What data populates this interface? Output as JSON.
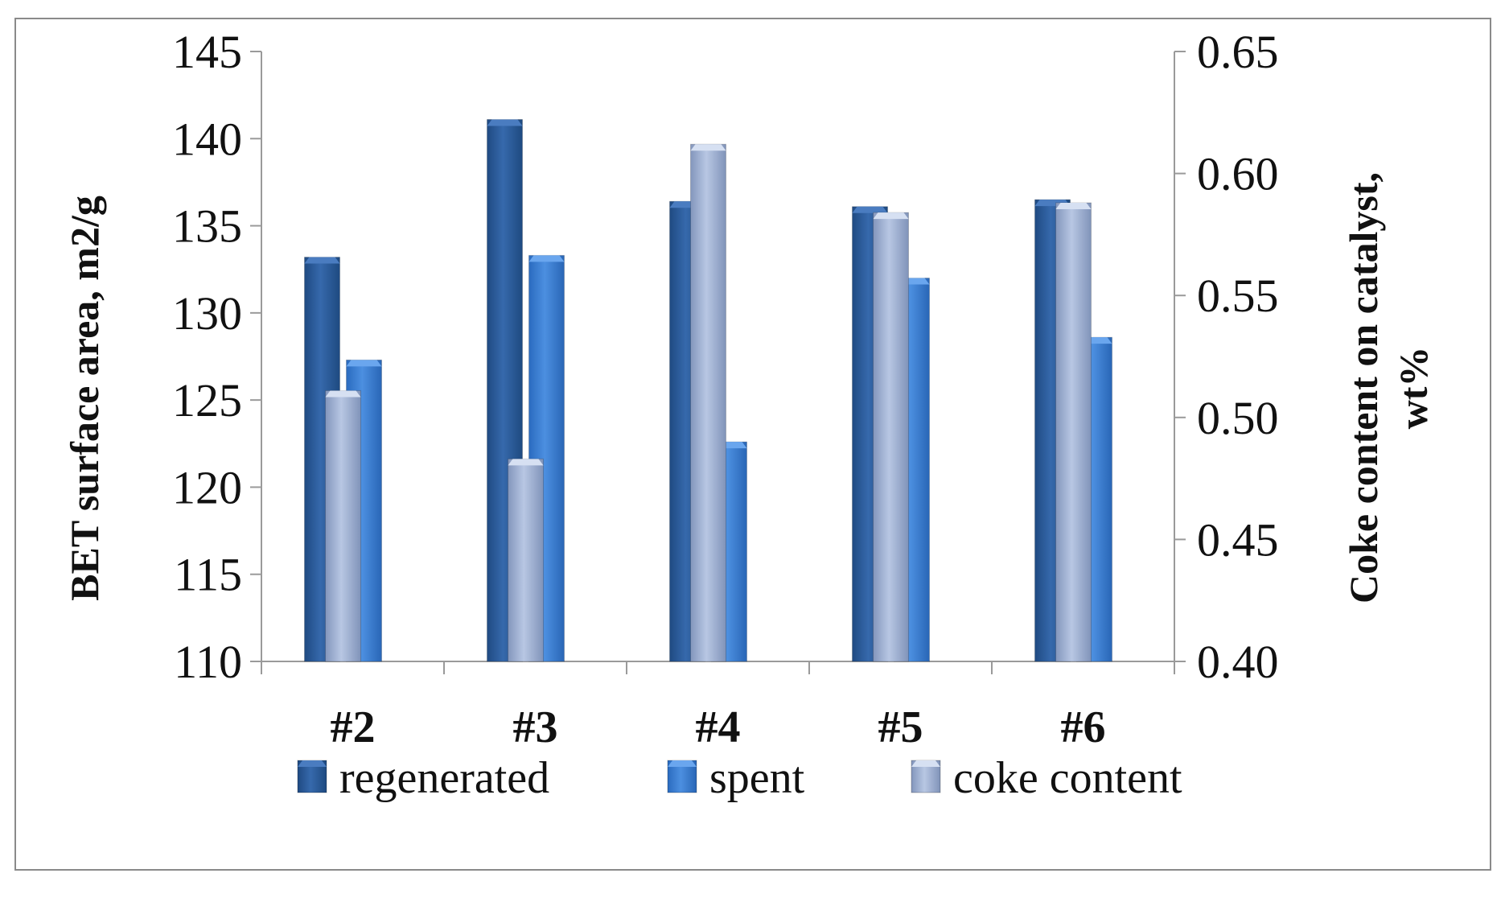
{
  "chart_data": {
    "type": "bar",
    "categories": [
      "#2",
      "#3",
      "#4",
      "#5",
      "#6"
    ],
    "series": [
      {
        "name": "regenerated",
        "axis": "left",
        "values": [
          133.2,
          141.1,
          136.4,
          136.1,
          136.5
        ],
        "color": "#2e5f9e"
      },
      {
        "name": "spent",
        "axis": "left",
        "values": [
          127.3,
          133.3,
          122.6,
          132.0,
          128.6
        ],
        "color": "#3d7fd0"
      },
      {
        "name": "coke content",
        "axis": "right",
        "values": [
          0.511,
          0.483,
          0.612,
          0.584,
          0.588
        ],
        "color": "#a5b7d8"
      }
    ],
    "ylabel": "BET surface area,  m2/g",
    "y2label_line1": "Coke content on catalyst,",
    "y2label_line2": "wt%",
    "ylim": [
      110,
      145
    ],
    "yticks": [
      "110",
      "115",
      "120",
      "125",
      "130",
      "135",
      "140",
      "145"
    ],
    "y2lim": [
      0.4,
      0.65
    ],
    "y2ticks": [
      "0.40",
      "0.45",
      "0.50",
      "0.55",
      "0.60",
      "0.65"
    ],
    "legend_position": "bottom",
    "grid": false
  }
}
